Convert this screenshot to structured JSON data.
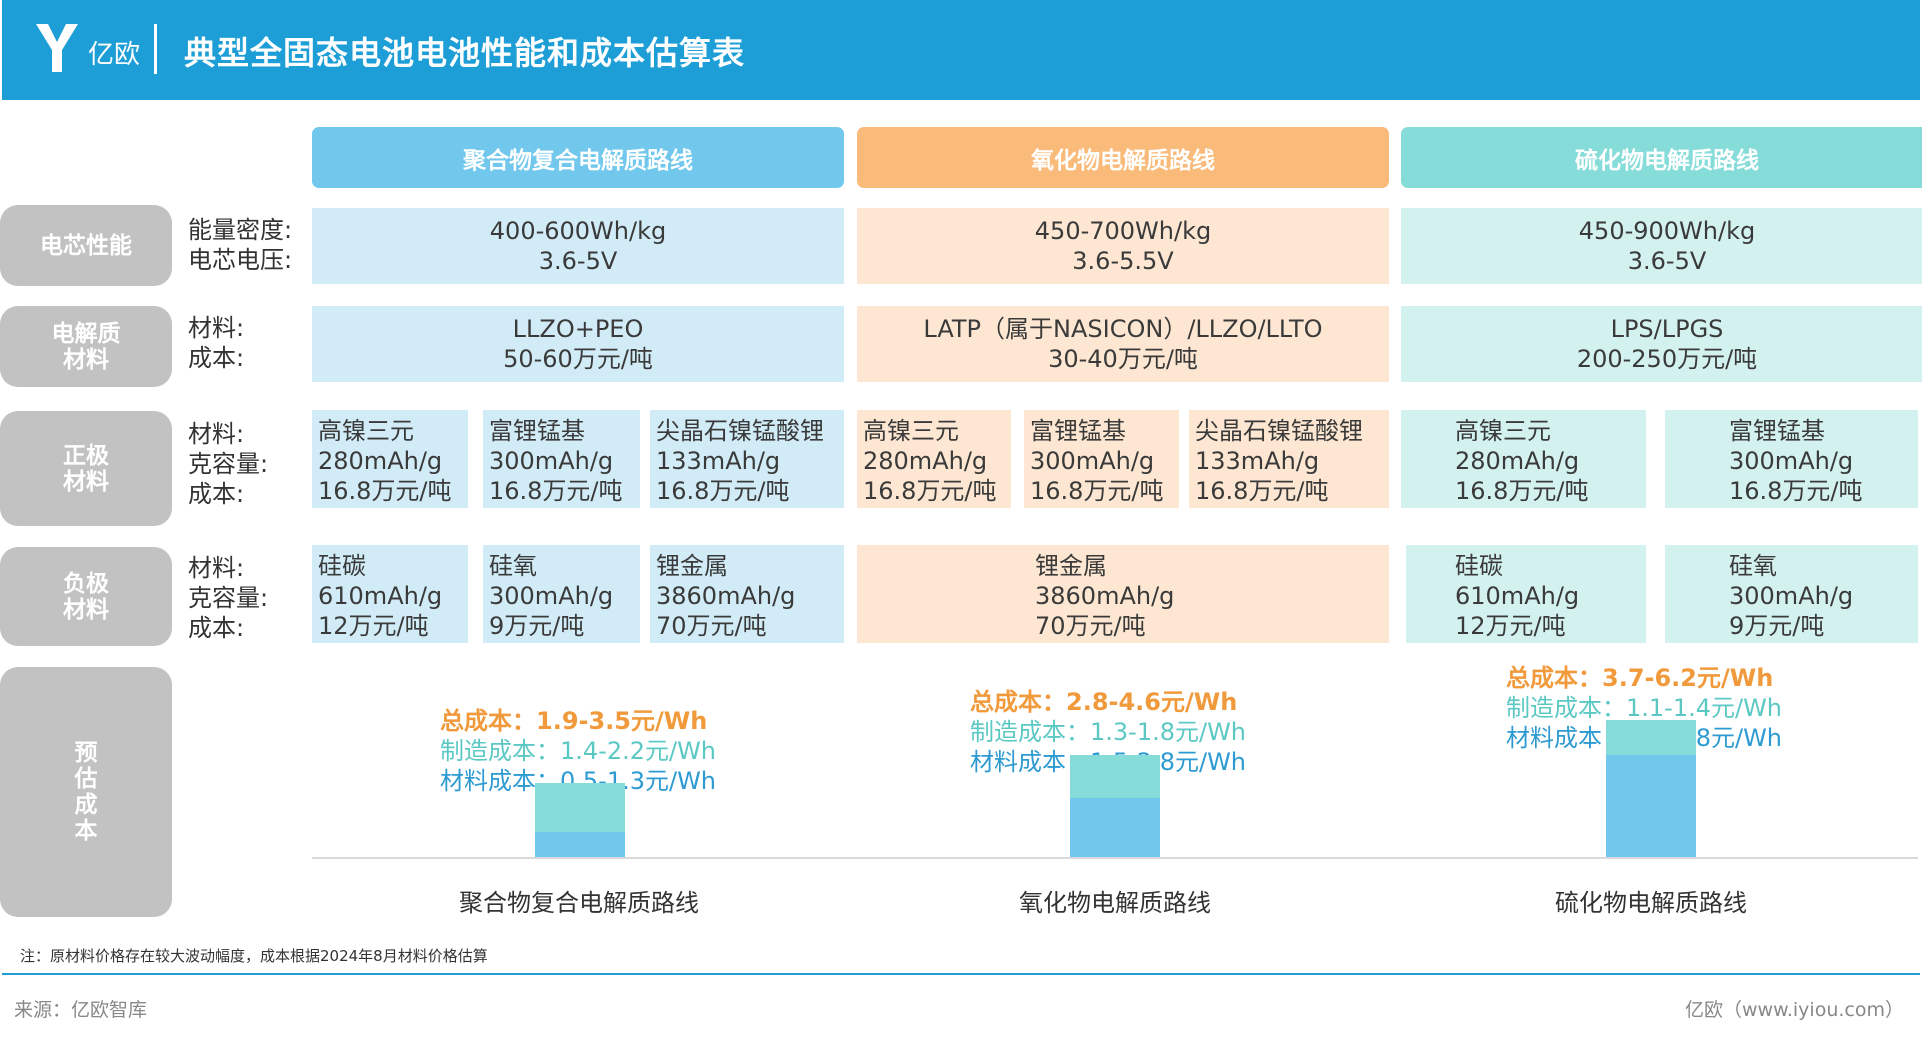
{
  "header": {
    "logo_text": "亿欧",
    "title": "典型全固态电池电池性能和成本估算表"
  },
  "columns": [
    {
      "name": "聚合物复合电解质路线",
      "color": "#72c8ec"
    },
    {
      "name": "氧化物电解质路线",
      "color": "#f9ba7a"
    },
    {
      "name": "硫化物电解质路线",
      "color": "#86dcd8"
    }
  ],
  "rows": {
    "cell_perf": {
      "label": "电芯性能",
      "fields": [
        "能量密度:",
        "电芯电压:"
      ],
      "values": [
        [
          "400-600Wh/kg",
          "3.6-5V"
        ],
        [
          "450-700Wh/kg",
          "3.6-5.5V"
        ],
        [
          "450-900Wh/kg",
          "3.6-5V"
        ]
      ]
    },
    "electrolyte": {
      "label_lines": [
        "电解质",
        "材料"
      ],
      "fields": [
        "材料:",
        "成本:"
      ],
      "values": [
        [
          "LLZO+PEO",
          "50-60万元/吨"
        ],
        [
          "LATP（属于NASICON）/LLZO/LLTO",
          "30-40万元/吨"
        ],
        [
          "LPS/LPGS",
          "200-250万元/吨"
        ]
      ]
    },
    "cathode": {
      "label_lines": [
        "正极",
        "材料"
      ],
      "fields": [
        "材料:",
        "克容量:",
        "成本:"
      ],
      "items": [
        [
          "高镍三元",
          "280mAh/g",
          "16.8万元/吨"
        ],
        [
          "富锂锰基",
          "300mAh/g",
          "16.8万元/吨"
        ],
        [
          "尖晶石镍锰酸锂",
          "133mAh/g",
          "16.8万元/吨"
        ],
        [
          "高镍三元",
          "280mAh/g",
          "16.8万元/吨"
        ],
        [
          "富锂锰基",
          "300mAh/g",
          "16.8万元/吨"
        ],
        [
          "尖晶石镍锰酸锂",
          "133mAh/g",
          "16.8万元/吨"
        ],
        [
          "高镍三元",
          "280mAh/g",
          "16.8万元/吨"
        ],
        [
          "富锂锰基",
          "300mAh/g",
          "16.8万元/吨"
        ]
      ]
    },
    "anode": {
      "label_lines": [
        "负极",
        "材料"
      ],
      "fields": [
        "材料:",
        "克容量:",
        "成本:"
      ],
      "items": [
        [
          "硅碳",
          "610mAh/g",
          "12万元/吨"
        ],
        [
          "硅氧",
          "300mAh/g",
          "9万元/吨"
        ],
        [
          "锂金属",
          "3860mAh/g",
          "70万元/吨"
        ],
        [
          "锂金属",
          "3860mAh/g",
          "70万元/吨"
        ],
        [
          "硅碳",
          "610mAh/g",
          "12万元/吨"
        ],
        [
          "硅氧",
          "300mAh/g",
          "9万元/吨"
        ]
      ]
    },
    "estimate": {
      "label_chars": [
        "预",
        "估",
        "成",
        "本"
      ]
    }
  },
  "chart_data": {
    "type": "bar",
    "stacked": true,
    "categories": [
      "聚合物复合电解质路线",
      "氧化物电解质路线",
      "硫化物电解质路线"
    ],
    "series": [
      {
        "name": "材料成本",
        "color": "#72c8ec",
        "values": [
          0.9,
          2.15,
          3.7
        ]
      },
      {
        "name": "制造成本",
        "color": "#86dcd8",
        "values": [
          1.8,
          1.55,
          1.25
        ]
      }
    ],
    "annotations": [
      {
        "total": "总成本：1.9-3.5元/Wh",
        "mfg": "制造成本：1.4-2.2元/Wh",
        "mat": "材料成本：0.5-1.3元/Wh"
      },
      {
        "total": "总成本：2.8-4.6元/Wh",
        "mfg": "制造成本：1.3-1.8元/Wh",
        "mat": "材料成本：1.5-2.8元/Wh"
      },
      {
        "total": "总成本：3.7-6.2元/Wh",
        "mfg": "制造成本：1.1-1.4元/Wh",
        "mat": "材料成本：2.6-4.8元/Wh"
      }
    ],
    "ylim": [
      0,
      5.8
    ]
  },
  "footer": {
    "note": "注：原材料价格存在较大波动幅度，成本根据2024年8月材料价格估算",
    "source": "来源：亿欧智库",
    "site": "亿欧（www.iyiou.com）"
  }
}
